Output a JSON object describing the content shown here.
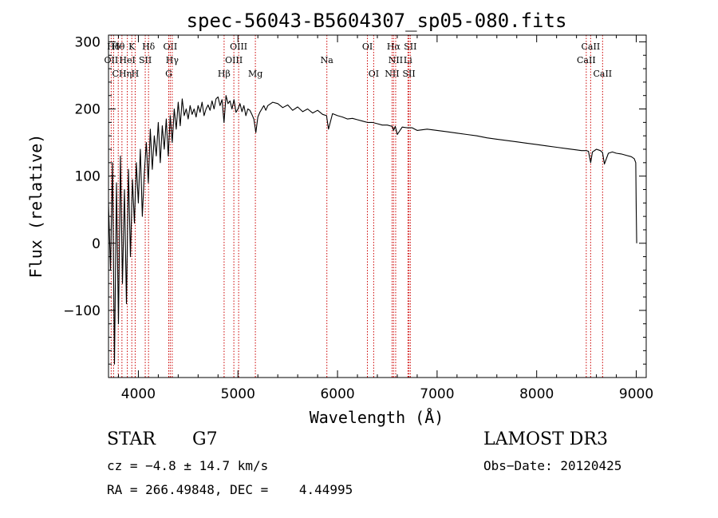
{
  "chart_data": {
    "type": "line",
    "title": "spec-56043-B5604307_sp05-080.fits",
    "xlabel": "Wavelength (Å)",
    "ylabel": "Flux (relative)",
    "xlim": [
      3700,
      9100
    ],
    "ylim": [
      -200,
      310
    ],
    "x_ticks": [
      4000,
      5000,
      6000,
      7000,
      8000,
      9000
    ],
    "x_tick_labels": [
      "4000",
      "5000",
      "6000",
      "7000",
      "8000",
      "9000"
    ],
    "y_ticks": [
      -100,
      0,
      100,
      200,
      300
    ],
    "y_tick_labels": [
      "−100",
      "0",
      "100",
      "200",
      "300"
    ],
    "series": [
      {
        "name": "spectrum",
        "x": [
          3700,
          3720,
          3740,
          3760,
          3780,
          3800,
          3820,
          3840,
          3860,
          3880,
          3900,
          3920,
          3940,
          3960,
          3980,
          4000,
          4020,
          4040,
          4060,
          4080,
          4100,
          4120,
          4140,
          4160,
          4180,
          4200,
          4220,
          4240,
          4260,
          4280,
          4300,
          4320,
          4340,
          4360,
          4380,
          4400,
          4420,
          4440,
          4460,
          4480,
          4500,
          4520,
          4540,
          4560,
          4580,
          4600,
          4620,
          4640,
          4660,
          4680,
          4700,
          4720,
          4740,
          4760,
          4780,
          4800,
          4820,
          4840,
          4860,
          4880,
          4900,
          4920,
          4940,
          4960,
          4980,
          5000,
          5020,
          5040,
          5060,
          5080,
          5100,
          5120,
          5140,
          5160,
          5180,
          5200,
          5220,
          5240,
          5260,
          5280,
          5300,
          5350,
          5400,
          5450,
          5500,
          5550,
          5600,
          5650,
          5700,
          5750,
          5800,
          5850,
          5890,
          5910,
          5950,
          6000,
          6050,
          6100,
          6150,
          6200,
          6250,
          6300,
          6350,
          6400,
          6450,
          6500,
          6550,
          6563,
          6580,
          6600,
          6650,
          6700,
          6750,
          6800,
          6900,
          7000,
          7100,
          7200,
          7300,
          7400,
          7500,
          7600,
          7700,
          7800,
          7900,
          8000,
          8100,
          8200,
          8300,
          8400,
          8450,
          8498,
          8520,
          8542,
          8560,
          8600,
          8640,
          8662,
          8680,
          8720,
          8760,
          8800,
          8850,
          8900,
          8950,
          8980,
          8995,
          9000,
          9005
        ],
        "y": [
          60,
          -40,
          120,
          -180,
          90,
          -120,
          130,
          -60,
          80,
          -90,
          110,
          -20,
          95,
          30,
          120,
          60,
          140,
          40,
          105,
          150,
          90,
          170,
          110,
          160,
          130,
          180,
          120,
          175,
          140,
          185,
          130,
          190,
          150,
          200,
          170,
          210,
          175,
          215,
          190,
          200,
          185,
          205,
          192,
          200,
          188,
          205,
          195,
          210,
          190,
          200,
          206,
          198,
          212,
          200,
          215,
          218,
          205,
          214,
          180,
          220,
          208,
          212,
          200,
          214,
          195,
          200,
          208,
          196,
          205,
          190,
          200,
          198,
          192,
          185,
          165,
          188,
          195,
          200,
          205,
          198,
          205,
          210,
          208,
          202,
          206,
          198,
          203,
          196,
          200,
          194,
          198,
          192,
          190,
          170,
          193,
          190,
          188,
          185,
          186,
          184,
          182,
          180,
          180,
          178,
          176,
          176,
          174,
          168,
          174,
          162,
          173,
          172,
          172,
          168,
          170,
          168,
          166,
          164,
          162,
          160,
          157,
          155,
          153,
          151,
          149,
          147,
          145,
          143,
          141,
          139,
          138,
          138,
          137,
          120,
          136,
          140,
          138,
          135,
          118,
          134,
          136,
          134,
          133,
          131,
          129,
          126,
          120,
          50,
          0
        ]
      }
    ],
    "line_markers": [
      {
        "label": "Hδ",
        "x": 3751,
        "row": 1
      },
      {
        "label": "Hθ",
        "x": 3798,
        "row": 1
      },
      {
        "label": "K",
        "x": 3934,
        "row": 1
      },
      {
        "label": "Hδ",
        "x": 4102,
        "row": 1
      },
      {
        "label": "OII",
        "x": 4320,
        "row": 1
      },
      {
        "label": "OIII",
        "x": 5007,
        "row": 1
      },
      {
        "label": "OI",
        "x": 6300,
        "row": 1
      },
      {
        "label": "Hα",
        "x": 6563,
        "row": 1
      },
      {
        "label": "SII",
        "x": 6731,
        "row": 1
      },
      {
        "label": "CaII",
        "x": 8542,
        "row": 1
      },
      {
        "label": "OII",
        "x": 3727,
        "row": 2
      },
      {
        "label": "HeI",
        "x": 3889,
        "row": 2
      },
      {
        "label": "SII",
        "x": 4069,
        "row": 2
      },
      {
        "label": "Hγ",
        "x": 4340,
        "row": 2
      },
      {
        "label": "OIII",
        "x": 4959,
        "row": 2
      },
      {
        "label": "Na",
        "x": 5893,
        "row": 2
      },
      {
        "label": "NII",
        "x": 6584,
        "row": 2
      },
      {
        "label": "Li",
        "x": 6707,
        "row": 2
      },
      {
        "label": "CaII",
        "x": 8498,
        "row": 2
      },
      {
        "label": "CHη",
        "x": 3835,
        "row": 3
      },
      {
        "label": "H",
        "x": 3968,
        "row": 3
      },
      {
        "label": "G",
        "x": 4305,
        "row": 3
      },
      {
        "label": "Hβ",
        "x": 4861,
        "row": 3
      },
      {
        "label": "Mg",
        "x": 5175,
        "row": 3
      },
      {
        "label": "OI",
        "x": 6363,
        "row": 3
      },
      {
        "label": "NII",
        "x": 6548,
        "row": 3
      },
      {
        "label": "SII",
        "x": 6717,
        "row": 3
      },
      {
        "label": "CaII",
        "x": 8662,
        "row": 3
      }
    ],
    "grid": false,
    "legend": "none"
  },
  "info": {
    "object_class": "STAR",
    "subclass": "G7",
    "survey": "LAMOST DR3",
    "redshift": "cz = −4.8 ± 14.7 km/s",
    "obs_date": "Obs−Date: 20120425",
    "coords": "RA = 266.49848, DEC =    4.44995"
  }
}
